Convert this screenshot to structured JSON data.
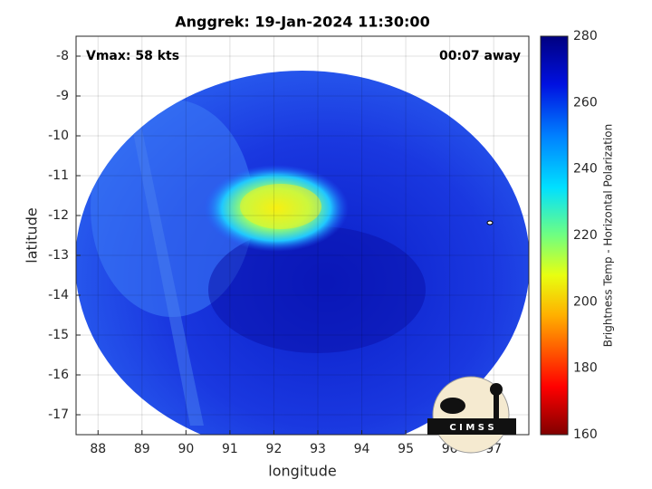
{
  "chart_data": {
    "type": "map",
    "title": "Anggrek: 19-Jan-2024 11:30:00",
    "annotations": [
      "Vmax: 58 kts",
      "00:07 away"
    ],
    "x_label": "longitude",
    "y_label": "latitude",
    "xlim": [
      87.5,
      97.8
    ],
    "xticks": [
      88,
      89,
      90,
      91,
      92,
      93,
      94,
      95,
      96,
      97
    ],
    "ylim": [
      -17.5,
      -7.5
    ],
    "yticks": [
      -17,
      -16,
      -15,
      -14,
      -13,
      -12,
      -11,
      -10,
      -9,
      -8
    ],
    "grid": true,
    "colorbar": {
      "label": "Brightness Temp - Horizontal Polarization",
      "lim": [
        160,
        280
      ],
      "ticks": [
        160,
        180,
        200,
        220,
        240,
        260,
        280
      ]
    },
    "logo": "C I M S S"
  }
}
